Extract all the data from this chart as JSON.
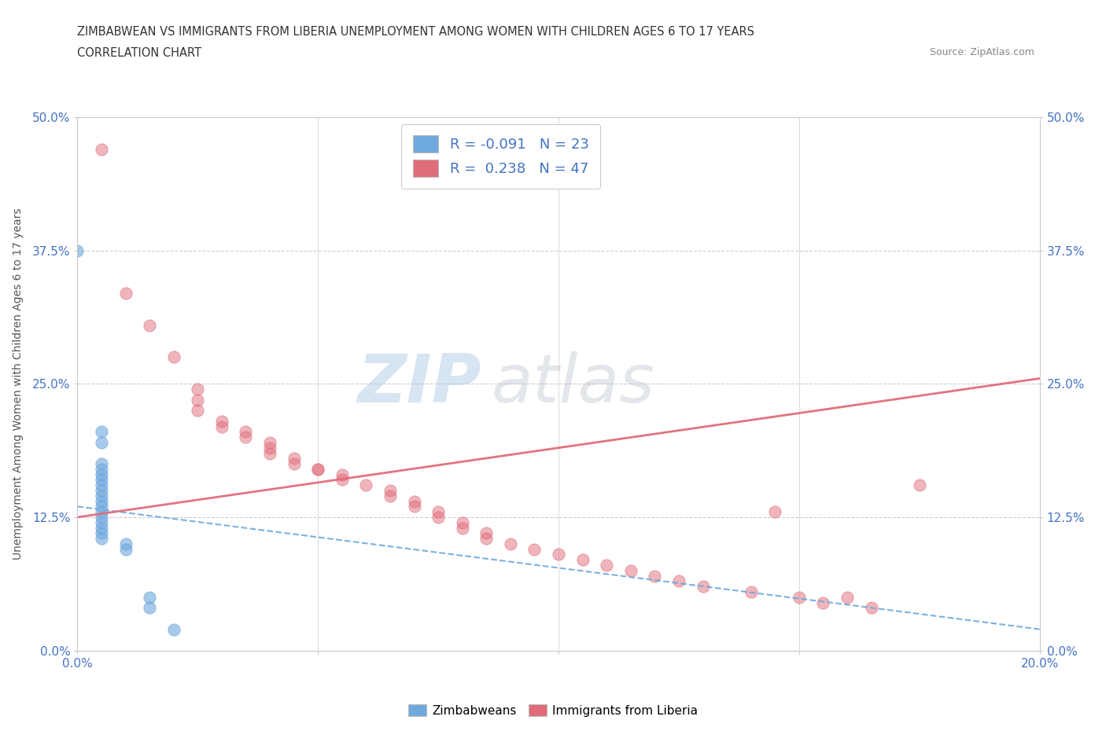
{
  "title_line1": "ZIMBABWEAN VS IMMIGRANTS FROM LIBERIA UNEMPLOYMENT AMONG WOMEN WITH CHILDREN AGES 6 TO 17 YEARS",
  "title_line2": "CORRELATION CHART",
  "source_text": "Source: ZipAtlas.com",
  "ylabel": "Unemployment Among Women with Children Ages 6 to 17 years",
  "xlim": [
    0.0,
    0.2
  ],
  "ylim": [
    0.0,
    0.5
  ],
  "ytick_values": [
    0.0,
    0.125,
    0.25,
    0.375,
    0.5
  ],
  "xtick_values": [
    0.0,
    0.05,
    0.1,
    0.15,
    0.2
  ],
  "blue_color": "#6fa8dc",
  "pink_color": "#e06c7a",
  "blue_scatter": [
    [
      0.0,
      0.375
    ],
    [
      0.005,
      0.205
    ],
    [
      0.005,
      0.195
    ],
    [
      0.005,
      0.175
    ],
    [
      0.005,
      0.17
    ],
    [
      0.005,
      0.165
    ],
    [
      0.005,
      0.16
    ],
    [
      0.005,
      0.155
    ],
    [
      0.005,
      0.15
    ],
    [
      0.005,
      0.145
    ],
    [
      0.005,
      0.14
    ],
    [
      0.005,
      0.135
    ],
    [
      0.005,
      0.13
    ],
    [
      0.005,
      0.125
    ],
    [
      0.005,
      0.12
    ],
    [
      0.005,
      0.115
    ],
    [
      0.005,
      0.11
    ],
    [
      0.005,
      0.105
    ],
    [
      0.01,
      0.1
    ],
    [
      0.01,
      0.095
    ],
    [
      0.015,
      0.05
    ],
    [
      0.015,
      0.04
    ],
    [
      0.02,
      0.02
    ]
  ],
  "pink_scatter": [
    [
      0.005,
      0.47
    ],
    [
      0.01,
      0.335
    ],
    [
      0.015,
      0.305
    ],
    [
      0.02,
      0.275
    ],
    [
      0.025,
      0.245
    ],
    [
      0.025,
      0.235
    ],
    [
      0.025,
      0.225
    ],
    [
      0.03,
      0.215
    ],
    [
      0.03,
      0.21
    ],
    [
      0.035,
      0.205
    ],
    [
      0.035,
      0.2
    ],
    [
      0.04,
      0.195
    ],
    [
      0.04,
      0.19
    ],
    [
      0.04,
      0.185
    ],
    [
      0.045,
      0.18
    ],
    [
      0.045,
      0.175
    ],
    [
      0.05,
      0.17
    ],
    [
      0.05,
      0.17
    ],
    [
      0.055,
      0.165
    ],
    [
      0.055,
      0.16
    ],
    [
      0.06,
      0.155
    ],
    [
      0.065,
      0.15
    ],
    [
      0.065,
      0.145
    ],
    [
      0.07,
      0.14
    ],
    [
      0.07,
      0.135
    ],
    [
      0.075,
      0.13
    ],
    [
      0.075,
      0.125
    ],
    [
      0.08,
      0.12
    ],
    [
      0.08,
      0.115
    ],
    [
      0.085,
      0.11
    ],
    [
      0.085,
      0.105
    ],
    [
      0.09,
      0.1
    ],
    [
      0.095,
      0.095
    ],
    [
      0.1,
      0.09
    ],
    [
      0.105,
      0.085
    ],
    [
      0.11,
      0.08
    ],
    [
      0.115,
      0.075
    ],
    [
      0.12,
      0.07
    ],
    [
      0.125,
      0.065
    ],
    [
      0.13,
      0.06
    ],
    [
      0.14,
      0.055
    ],
    [
      0.145,
      0.13
    ],
    [
      0.15,
      0.05
    ],
    [
      0.155,
      0.045
    ],
    [
      0.16,
      0.05
    ],
    [
      0.165,
      0.04
    ],
    [
      0.175,
      0.155
    ]
  ],
  "legend_blue_r": "R = -0.091",
  "legend_blue_n": "N = 23",
  "legend_pink_r": "R =  0.238",
  "legend_pink_n": "N = 47",
  "watermark_zip": "ZIP",
  "watermark_atlas": "atlas",
  "grid_color": "#cccccc",
  "blue_trend": [
    0.0,
    0.135,
    0.2,
    0.02
  ],
  "pink_trend": [
    0.0,
    0.125,
    0.2,
    0.255
  ]
}
